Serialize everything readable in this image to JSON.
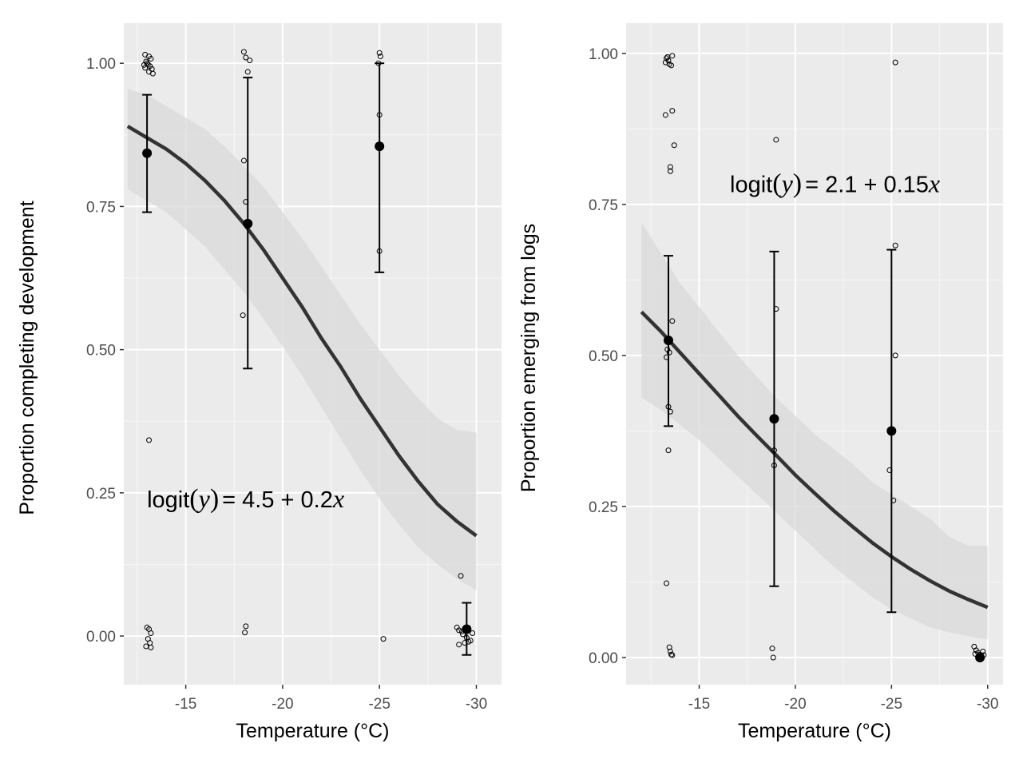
{
  "chart_data": [
    {
      "type": "scatter",
      "xlabel": "Temperature (°C)",
      "ylabel": "Proportion completing development",
      "xlim": [
        -11.8,
        -31.3
      ],
      "ylim": [
        -0.085,
        1.07
      ],
      "x_ticks": [
        -15,
        -20,
        -25,
        -30
      ],
      "x_tick_labels": [
        "-15",
        "-20",
        "-25",
        "-30"
      ],
      "y_ticks": [
        0,
        0.25,
        0.5,
        0.75,
        1
      ],
      "y_tick_labels": [
        "0.00",
        "0.25",
        "0.50",
        "0.75",
        "1.00"
      ],
      "grid": true,
      "annotation": {
        "func": "logit",
        "var": "y",
        "rest": "= 4.5 + 0.2",
        "xvar": "x",
        "x": -13,
        "y": 0.225
      },
      "fit_curve": {
        "x": [
          -12,
          -13,
          -14,
          -15,
          -16,
          -17,
          -18,
          -19,
          -20,
          -21,
          -22,
          -23,
          -24,
          -25,
          -26,
          -27,
          -28,
          -29,
          -30
        ],
        "y": [
          0.89,
          0.87,
          0.85,
          0.825,
          0.795,
          0.76,
          0.72,
          0.675,
          0.625,
          0.575,
          0.52,
          0.47,
          0.415,
          0.365,
          0.315,
          0.27,
          0.23,
          0.2,
          0.175
        ],
        "lower": [
          0.78,
          0.76,
          0.74,
          0.71,
          0.68,
          0.64,
          0.6,
          0.555,
          0.505,
          0.455,
          0.4,
          0.345,
          0.29,
          0.24,
          0.195,
          0.155,
          0.125,
          0.1,
          0.08
        ],
        "upper": [
          0.955,
          0.945,
          0.925,
          0.905,
          0.885,
          0.855,
          0.82,
          0.785,
          0.74,
          0.695,
          0.645,
          0.595,
          0.545,
          0.5,
          0.455,
          0.415,
          0.38,
          0.36,
          0.355
        ]
      },
      "means": [
        {
          "x": -13,
          "y": 0.843,
          "lower": 0.74,
          "upper": 0.945
        },
        {
          "x": -18.2,
          "y": 0.72,
          "lower": 0.467,
          "upper": 0.975
        },
        {
          "x": -25,
          "y": 0.855,
          "lower": 0.635,
          "upper": 1.0
        },
        {
          "x": -29.5,
          "y": 0.012,
          "lower": -0.033,
          "upper": 0.058
        }
      ],
      "points": [
        [
          -12.9,
          1.015
        ],
        [
          -13.1,
          1.012
        ],
        [
          -13.2,
          1.008
        ],
        [
          -12.95,
          1.003
        ],
        [
          -13.05,
          0.998
        ],
        [
          -13.15,
          0.995
        ],
        [
          -12.9,
          0.992
        ],
        [
          -13.25,
          0.99
        ],
        [
          -13.0,
          1.0
        ],
        [
          -13.1,
          0.985
        ],
        [
          -13.3,
          0.982
        ],
        [
          -12.85,
          0.997
        ],
        [
          -13.1,
          0.342
        ],
        [
          -13.0,
          0.015
        ],
        [
          -13.1,
          0.012
        ],
        [
          -13.2,
          0.005
        ],
        [
          -13.05,
          -0.005
        ],
        [
          -13.15,
          -0.012
        ],
        [
          -12.95,
          -0.018
        ],
        [
          -13.2,
          -0.02
        ],
        [
          -18.0,
          1.02
        ],
        [
          -18.1,
          1.01
        ],
        [
          -18.3,
          1.005
        ],
        [
          -18.2,
          0.985
        ],
        [
          -18.0,
          0.83
        ],
        [
          -18.1,
          0.758
        ],
        [
          -17.95,
          0.56
        ],
        [
          -18.1,
          0.017
        ],
        [
          -18.05,
          0.006
        ],
        [
          -25.0,
          1.018
        ],
        [
          -25.05,
          1.012
        ],
        [
          -24.95,
          1.0
        ],
        [
          -25.0,
          0.91
        ],
        [
          -25.0,
          0.672
        ],
        [
          -25.2,
          -0.005
        ],
        [
          -29.2,
          0.105
        ],
        [
          -29.0,
          0.015
        ],
        [
          -29.1,
          0.01
        ],
        [
          -29.3,
          0.003
        ],
        [
          -29.5,
          -0.003
        ],
        [
          -29.7,
          -0.008
        ],
        [
          -29.4,
          -0.012
        ],
        [
          -29.1,
          -0.015
        ],
        [
          -29.8,
          0.005
        ],
        [
          -29.6,
          -0.01
        ],
        [
          -29.25,
          0.008
        ]
      ]
    },
    {
      "type": "scatter",
      "xlabel": "Temperature (°C)",
      "ylabel": "Proportion emerging from logs",
      "xlim": [
        -11.2,
        -30.8
      ],
      "ylim": [
        -0.045,
        1.05
      ],
      "x_ticks": [
        -15,
        -20,
        -25,
        -30
      ],
      "x_tick_labels": [
        "-15",
        "-20",
        "-25",
        "-30"
      ],
      "y_ticks": [
        0,
        0.25,
        0.5,
        0.75,
        1
      ],
      "y_tick_labels": [
        "0.00",
        "0.25",
        "0.50",
        "0.75",
        "1.00"
      ],
      "grid": true,
      "annotation": {
        "func": "logit",
        "var": "y",
        "rest": "= 2.1 + 0.15",
        "xvar": "x",
        "x": -16.6,
        "y": 0.77
      },
      "fit_curve": {
        "x": [
          -12,
          -13,
          -14,
          -15,
          -16,
          -17,
          -18,
          -19,
          -20,
          -21,
          -22,
          -23,
          -24,
          -25,
          -26,
          -27,
          -28,
          -29,
          -30
        ],
        "y": [
          0.572,
          0.54,
          0.505,
          0.47,
          0.435,
          0.4,
          0.367,
          0.335,
          0.302,
          0.272,
          0.243,
          0.216,
          0.19,
          0.167,
          0.146,
          0.127,
          0.11,
          0.096,
          0.083
        ],
        "lower": [
          0.43,
          0.41,
          0.385,
          0.36,
          0.33,
          0.3,
          0.27,
          0.24,
          0.21,
          0.18,
          0.15,
          0.125,
          0.1,
          0.08,
          0.065,
          0.05,
          0.042,
          0.035,
          0.03
        ],
        "upper": [
          0.72,
          0.67,
          0.62,
          0.58,
          0.54,
          0.5,
          0.465,
          0.43,
          0.4,
          0.37,
          0.345,
          0.32,
          0.29,
          0.27,
          0.25,
          0.23,
          0.2,
          0.185,
          0.185
        ]
      },
      "means": [
        {
          "x": -13.4,
          "y": 0.525,
          "lower": 0.383,
          "upper": 0.665
        },
        {
          "x": -18.9,
          "y": 0.395,
          "lower": 0.118,
          "upper": 0.672
        },
        {
          "x": -25.0,
          "y": 0.375,
          "lower": 0.075,
          "upper": 0.675
        },
        {
          "x": -29.6,
          "y": 0.0,
          "lower": 0.0,
          "upper": 0.0
        }
      ],
      "points": [
        [
          -13.3,
          0.992
        ],
        [
          -13.4,
          0.988
        ],
        [
          -13.6,
          0.996
        ],
        [
          -13.25,
          0.985
        ],
        [
          -13.45,
          0.982
        ],
        [
          -13.55,
          0.98
        ],
        [
          -13.35,
          0.994
        ],
        [
          -13.6,
          0.905
        ],
        [
          -13.25,
          0.898
        ],
        [
          -13.7,
          0.848
        ],
        [
          -13.5,
          0.812
        ],
        [
          -13.5,
          0.805
        ],
        [
          -13.6,
          0.557
        ],
        [
          -13.35,
          0.51
        ],
        [
          -13.45,
          0.505
        ],
        [
          -13.3,
          0.497
        ],
        [
          -13.4,
          0.415
        ],
        [
          -13.5,
          0.407
        ],
        [
          -13.4,
          0.343
        ],
        [
          -13.3,
          0.123
        ],
        [
          -13.45,
          0.017
        ],
        [
          -13.5,
          0.01
        ],
        [
          -13.55,
          0.005
        ],
        [
          -13.6,
          0.004
        ],
        [
          -19.0,
          0.857
        ],
        [
          -19.0,
          0.577
        ],
        [
          -18.9,
          0.343
        ],
        [
          -18.9,
          0.318
        ],
        [
          -18.8,
          0.015
        ],
        [
          -18.85,
          0.0
        ],
        [
          -25.2,
          0.985
        ],
        [
          -25.2,
          0.682
        ],
        [
          -25.2,
          0.5
        ],
        [
          -24.9,
          0.31
        ],
        [
          -25.1,
          0.26
        ],
        [
          -29.3,
          0.018
        ],
        [
          -29.4,
          0.012
        ],
        [
          -29.5,
          0.008
        ],
        [
          -29.6,
          0.005
        ],
        [
          -29.75,
          0.01
        ],
        [
          -29.8,
          0.004
        ],
        [
          -29.35,
          0.006
        ]
      ]
    }
  ]
}
